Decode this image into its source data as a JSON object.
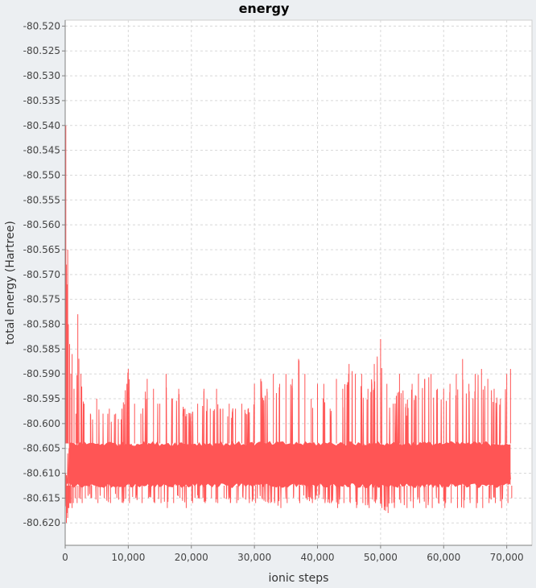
{
  "chart_data": {
    "type": "line",
    "title": "energy",
    "xlabel": "ionic steps",
    "ylabel": "total energy (Hartree)",
    "xlim": [
      0,
      74000
    ],
    "ylim": [
      -80.6245,
      -80.5188
    ],
    "x_ticks": [
      0,
      10000,
      20000,
      30000,
      40000,
      50000,
      60000,
      70000
    ],
    "x_tick_labels": [
      "0",
      "10,000",
      "20,000",
      "30,000",
      "40,000",
      "50,000",
      "60,000",
      "70,000"
    ],
    "y_ticks": [
      -80.52,
      -80.525,
      -80.53,
      -80.535,
      -80.54,
      -80.545,
      -80.55,
      -80.555,
      -80.56,
      -80.565,
      -80.57,
      -80.575,
      -80.58,
      -80.585,
      -80.59,
      -80.595,
      -80.6,
      -80.605,
      -80.61,
      -80.615,
      -80.62
    ],
    "y_tick_labels": [
      "-80.520",
      "-80.525",
      "-80.530",
      "-80.535",
      "-80.540",
      "-80.545",
      "-80.550",
      "-80.555",
      "-80.560",
      "-80.565",
      "-80.570",
      "-80.575",
      "-80.580",
      "-80.585",
      "-80.590",
      "-80.595",
      "-80.600",
      "-80.605",
      "-80.610",
      "-80.615",
      "-80.620"
    ],
    "grid": true,
    "legend": "none",
    "series": [
      {
        "color": "#ff5555",
        "x": [
          0,
          100,
          200,
          300,
          400,
          500,
          700,
          900,
          1100,
          1400,
          1700,
          2000,
          2500,
          3000,
          4000,
          5000,
          6000,
          7000,
          8000,
          9000,
          10000,
          11000,
          12000,
          13000,
          14000,
          15000,
          16000,
          17000,
          18000,
          19000,
          20000,
          21000,
          22000,
          23000,
          24000,
          25000,
          26000,
          27000,
          28000,
          29000,
          30000,
          31000,
          32000,
          33000,
          34000,
          35000,
          36000,
          37000,
          38000,
          39000,
          40000,
          41000,
          42000,
          43000,
          44000,
          45000,
          46000,
          47000,
          48000,
          49000,
          50000,
          51000,
          52000,
          53000,
          54000,
          55000,
          56000,
          57000,
          58000,
          59000,
          60000,
          61000,
          62000,
          63000,
          64000,
          65000,
          66000,
          67000,
          68000,
          69000,
          70000,
          70600
        ],
        "y_max": [
          -80.616,
          -80.54,
          -80.568,
          -80.572,
          -80.565,
          -80.58,
          -80.584,
          -80.59,
          -80.586,
          -80.593,
          -80.598,
          -80.578,
          -80.59,
          -80.596,
          -80.598,
          -80.595,
          -80.598,
          -80.597,
          -80.598,
          -80.597,
          -80.589,
          -80.596,
          -80.598,
          -80.591,
          -80.593,
          -80.596,
          -80.59,
          -80.595,
          -80.593,
          -80.597,
          -80.598,
          -80.596,
          -80.593,
          -80.597,
          -80.593,
          -80.597,
          -80.596,
          -80.597,
          -80.596,
          -80.597,
          -80.592,
          -80.591,
          -80.593,
          -80.59,
          -80.592,
          -80.59,
          -80.591,
          -80.587,
          -80.59,
          -80.595,
          -80.592,
          -80.592,
          -80.597,
          -80.591,
          -80.593,
          -80.588,
          -80.59,
          -80.59,
          -80.593,
          -80.588,
          -80.583,
          -80.592,
          -80.596,
          -80.59,
          -80.596,
          -80.592,
          -80.59,
          -80.591,
          -80.59,
          -80.593,
          -80.593,
          -80.592,
          -80.59,
          -80.587,
          -80.592,
          -80.59,
          -80.589,
          -80.591,
          -80.593,
          -80.595,
          -80.59,
          -80.589
        ],
        "y_min": [
          -80.62,
          -80.618,
          -80.619,
          -80.617,
          -80.617,
          -80.616,
          -80.616,
          -80.617,
          -80.616,
          -80.615,
          -80.616,
          -80.615,
          -80.616,
          -80.615,
          -80.615,
          -80.616,
          -80.615,
          -80.616,
          -80.615,
          -80.616,
          -80.616,
          -80.615,
          -80.616,
          -80.615,
          -80.616,
          -80.616,
          -80.617,
          -80.616,
          -80.615,
          -80.617,
          -80.616,
          -80.615,
          -80.616,
          -80.615,
          -80.616,
          -80.615,
          -80.616,
          -80.616,
          -80.615,
          -80.616,
          -80.616,
          -80.615,
          -80.616,
          -80.616,
          -80.617,
          -80.616,
          -80.615,
          -80.616,
          -80.615,
          -80.616,
          -80.615,
          -80.616,
          -80.616,
          -80.617,
          -80.616,
          -80.616,
          -80.617,
          -80.616,
          -80.617,
          -80.616,
          -80.617,
          -80.618,
          -80.617,
          -80.616,
          -80.617,
          -80.617,
          -80.616,
          -80.617,
          -80.617,
          -80.616,
          -80.617,
          -80.616,
          -80.617,
          -80.617,
          -80.616,
          -80.617,
          -80.617,
          -80.616,
          -80.616,
          -80.617,
          -80.616,
          -80.615
        ],
        "band_high": -80.604,
        "band_low": -80.6125
      }
    ]
  }
}
